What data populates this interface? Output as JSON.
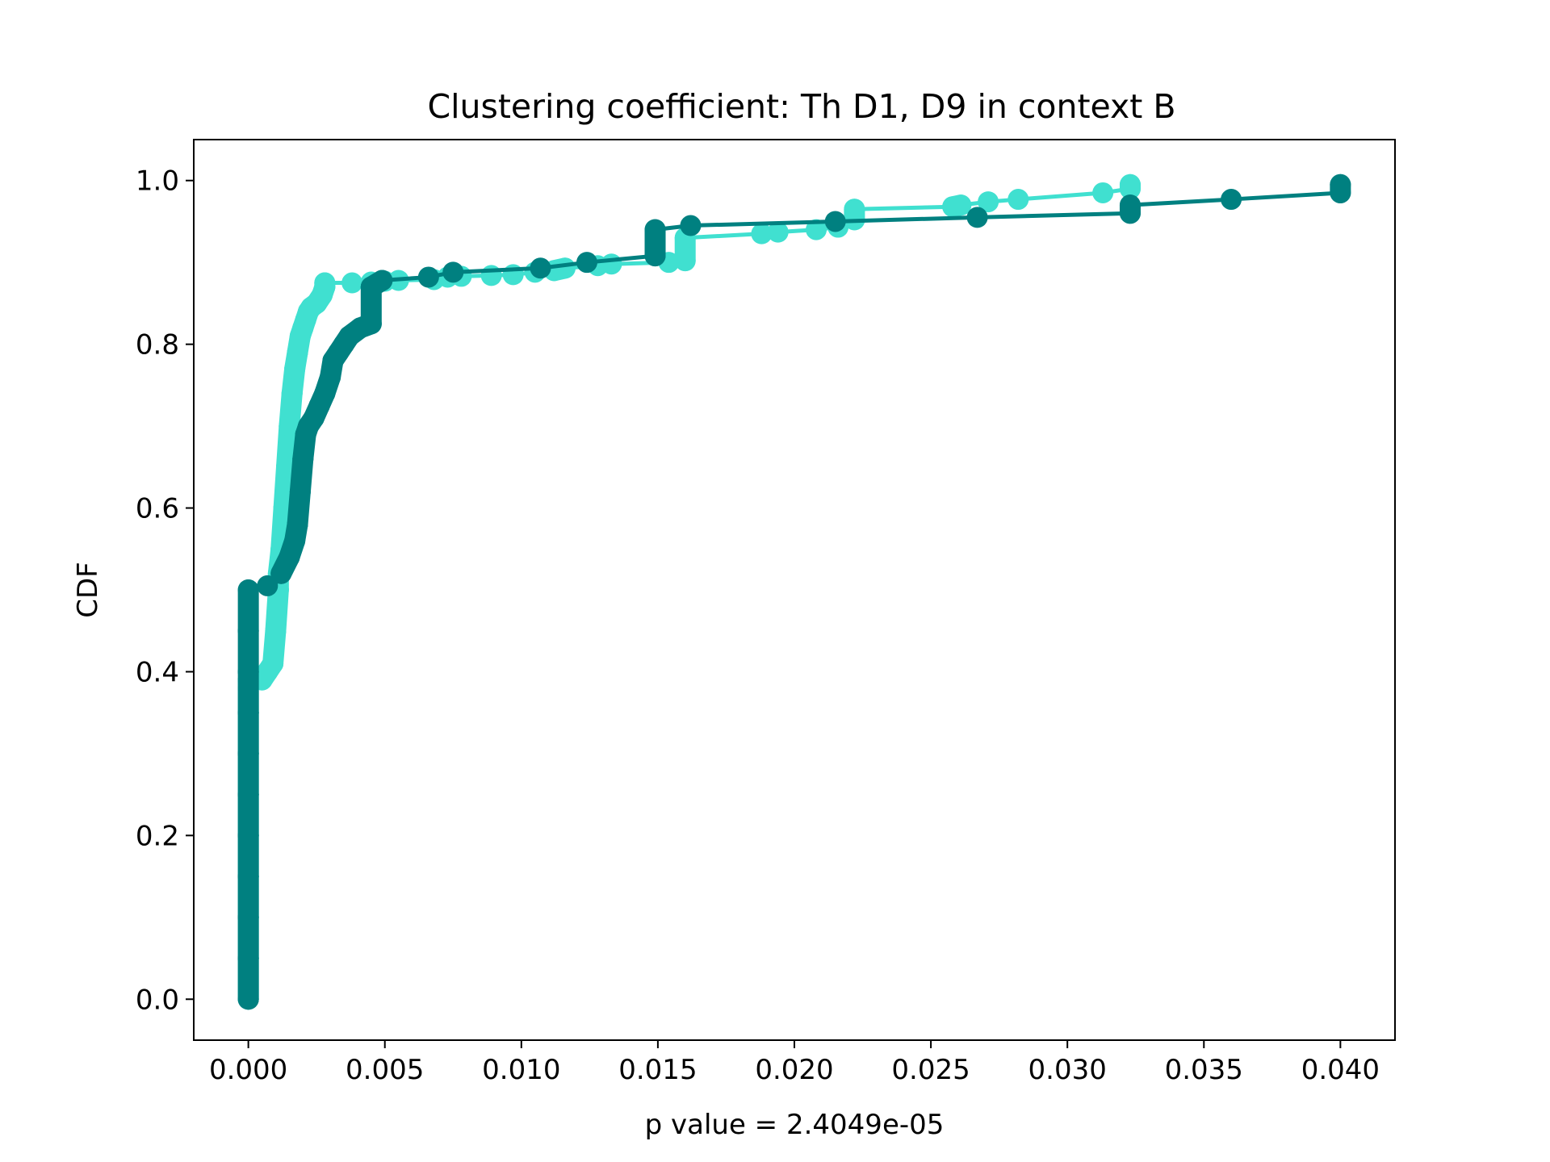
{
  "chart_data": {
    "type": "line",
    "title": "Clustering coefficient: Th D1, D9 in context B",
    "xlabel": "p value = 2.4049e-05",
    "ylabel": "CDF",
    "xlim": [
      -0.002,
      0.042
    ],
    "ylim": [
      -0.05,
      1.05
    ],
    "xticks": [
      "0.000",
      "0.005",
      "0.010",
      "0.015",
      "0.020",
      "0.025",
      "0.030",
      "0.035",
      "0.040"
    ],
    "xtick_values": [
      0.0,
      0.005,
      0.01,
      0.015,
      0.02,
      0.025,
      0.03,
      0.035,
      0.04
    ],
    "yticks": [
      "0.0",
      "0.2",
      "0.4",
      "0.6",
      "0.8",
      "1.0"
    ],
    "ytick_values": [
      0.0,
      0.2,
      0.4,
      0.6,
      0.8,
      1.0
    ],
    "grid": false,
    "series": [
      {
        "color": "#40e0d0",
        "x": [
          0.0,
          0.0,
          0.0,
          0.0,
          0.0,
          0.0,
          0.0,
          0.0,
          0.0,
          0.0,
          0.0,
          0.0005,
          0.0007,
          0.0009,
          0.001,
          0.0011,
          0.0011,
          0.0012,
          0.0013,
          0.0014,
          0.0015,
          0.0016,
          0.0017,
          0.0018,
          0.0019,
          0.002,
          0.0021,
          0.0022,
          0.0023,
          0.0025,
          0.0027,
          0.0028,
          0.0028,
          0.0038,
          0.0045,
          0.005,
          0.0055,
          0.0068,
          0.0073,
          0.0078,
          0.0089,
          0.0097,
          0.0105,
          0.0112,
          0.0116,
          0.0128,
          0.0133,
          0.0154,
          0.016,
          0.016,
          0.0188,
          0.0194,
          0.0208,
          0.0216,
          0.0222,
          0.0222,
          0.0258,
          0.0261,
          0.0271,
          0.0282,
          0.0313,
          0.0323,
          0.0323
        ],
        "y": [
          0.0,
          0.05,
          0.1,
          0.15,
          0.2,
          0.25,
          0.3,
          0.35,
          0.38,
          0.39,
          0.39,
          0.39,
          0.4,
          0.41,
          0.45,
          0.5,
          0.52,
          0.55,
          0.6,
          0.65,
          0.7,
          0.74,
          0.77,
          0.79,
          0.81,
          0.82,
          0.83,
          0.84,
          0.845,
          0.85,
          0.86,
          0.87,
          0.875,
          0.875,
          0.876,
          0.877,
          0.878,
          0.879,
          0.882,
          0.883,
          0.884,
          0.885,
          0.888,
          0.89,
          0.893,
          0.896,
          0.898,
          0.9,
          0.902,
          0.93,
          0.935,
          0.937,
          0.94,
          0.943,
          0.952,
          0.965,
          0.968,
          0.97,
          0.974,
          0.977,
          0.985,
          0.99,
          0.995
        ]
      },
      {
        "color": "#008080",
        "x": [
          0.0,
          0.0,
          0.0,
          0.0,
          0.0,
          0.0,
          0.0,
          0.0,
          0.0,
          0.0,
          0.0,
          0.0007,
          0.0012,
          0.0015,
          0.0017,
          0.0018,
          0.0019,
          0.002,
          0.0021,
          0.0022,
          0.0024,
          0.0026,
          0.0028,
          0.003,
          0.0031,
          0.0033,
          0.0035,
          0.0037,
          0.0041,
          0.0045,
          0.0045,
          0.0049,
          0.0066,
          0.0075,
          0.0107,
          0.0124,
          0.0149,
          0.0149,
          0.0162,
          0.0215,
          0.0267,
          0.0323,
          0.0323,
          0.036,
          0.04,
          0.04
        ],
        "y": [
          0.0,
          0.05,
          0.1,
          0.15,
          0.2,
          0.25,
          0.3,
          0.35,
          0.4,
          0.45,
          0.5,
          0.505,
          0.52,
          0.54,
          0.56,
          0.58,
          0.62,
          0.66,
          0.69,
          0.7,
          0.71,
          0.725,
          0.74,
          0.76,
          0.78,
          0.79,
          0.8,
          0.81,
          0.82,
          0.825,
          0.87,
          0.878,
          0.882,
          0.888,
          0.893,
          0.9,
          0.908,
          0.94,
          0.945,
          0.95,
          0.955,
          0.96,
          0.97,
          0.977,
          0.985,
          0.995
        ]
      }
    ]
  }
}
